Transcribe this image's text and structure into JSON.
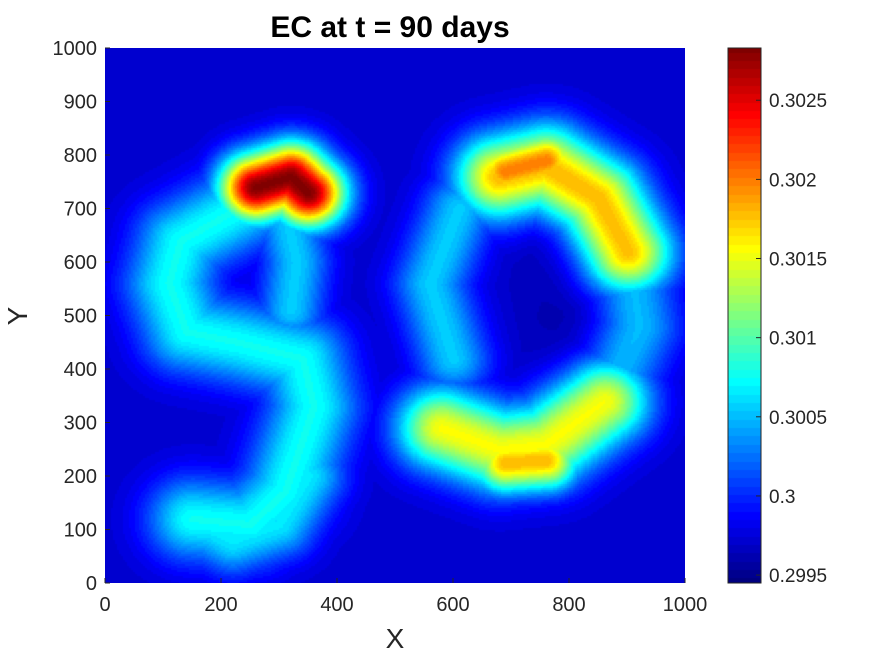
{
  "chart_data": {
    "type": "heatmap",
    "title": "EC at t = 90 days",
    "xlabel": "X",
    "ylabel": "Y",
    "xlim": [
      0,
      1000
    ],
    "ylim": [
      0,
      1000
    ],
    "xticks": [
      0,
      200,
      400,
      600,
      800,
      1000
    ],
    "yticks": [
      0,
      100,
      200,
      300,
      400,
      500,
      600,
      700,
      800,
      900,
      1000
    ],
    "colormap": "jet",
    "colorbar": {
      "min": 0.29945,
      "max": 0.30283,
      "ticks": [
        0.2995,
        0.3,
        0.3005,
        0.301,
        0.3015,
        0.302,
        0.3025
      ],
      "tick_labels": [
        "0.2995",
        "0.3",
        "0.3005",
        "0.301",
        "0.3015",
        "0.302",
        "0.3025"
      ]
    },
    "background_value": 0.2997,
    "features": [
      {
        "name": "left-arc",
        "path": [
          [
            230,
            700
          ],
          [
            130,
            640
          ],
          [
            110,
            560
          ],
          [
            140,
            470
          ],
          [
            230,
            450
          ],
          [
            340,
            420
          ],
          [
            360,
            330
          ],
          [
            310,
            170
          ],
          [
            250,
            110
          ],
          [
            150,
            120
          ]
        ],
        "peak": 0.30075,
        "width": 55
      },
      {
        "name": "left-neck",
        "path": [
          [
            310,
            700
          ],
          [
            330,
            600
          ],
          [
            320,
            510
          ]
        ],
        "peak": 0.30055,
        "width": 40
      },
      {
        "name": "hotspot-top-left",
        "path": [
          [
            260,
            740
          ],
          [
            320,
            760
          ],
          [
            350,
            730
          ]
        ],
        "peak": 0.30283,
        "width": 45
      },
      {
        "name": "right-arc-upper",
        "path": [
          [
            680,
            760
          ],
          [
            760,
            780
          ],
          [
            850,
            720
          ],
          [
            900,
            620
          ]
        ],
        "peak": 0.3018,
        "width": 55
      },
      {
        "name": "right-arc-mid",
        "path": [
          [
            900,
            620
          ],
          [
            920,
            480
          ],
          [
            860,
            340
          ]
        ],
        "peak": 0.3005,
        "width": 50
      },
      {
        "name": "right-arc-lower",
        "path": [
          [
            860,
            340
          ],
          [
            760,
            260
          ],
          [
            680,
            250
          ],
          [
            580,
            290
          ]
        ],
        "peak": 0.30155,
        "width": 55
      },
      {
        "name": "right-arc-left",
        "path": [
          [
            610,
            700
          ],
          [
            560,
            560
          ],
          [
            600,
            420
          ]
        ],
        "peak": 0.30055,
        "width": 45
      },
      {
        "name": "right-bottom-hotspot",
        "path": [
          [
            690,
            225
          ],
          [
            760,
            230
          ]
        ],
        "peak": 0.3018,
        "width": 40
      },
      {
        "name": "right-top-hotspot",
        "path": [
          [
            690,
            770
          ],
          [
            760,
            790
          ]
        ],
        "peak": 0.302,
        "width": 40
      },
      {
        "name": "left-bottom-band",
        "path": [
          [
            350,
            200
          ],
          [
            300,
            110
          ],
          [
            220,
            80
          ],
          [
            150,
            120
          ]
        ],
        "peak": 0.30065,
        "width": 45
      },
      {
        "name": "right-core-minimum",
        "path": [
          [
            790,
            600
          ],
          [
            800,
            450
          ]
        ],
        "peak": 0.2996,
        "width": 60
      }
    ]
  }
}
